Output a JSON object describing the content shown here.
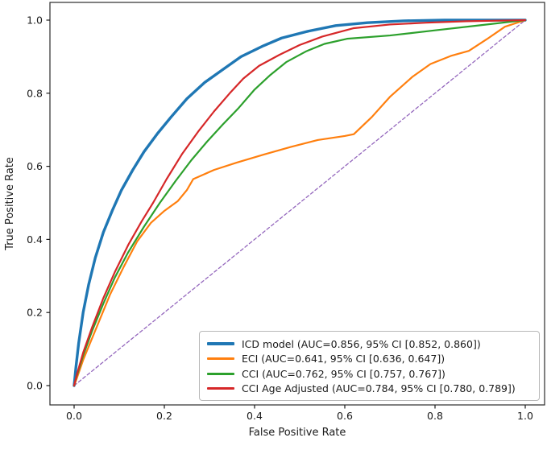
{
  "chart_data": {
    "type": "line",
    "title": "",
    "xlabel": "False Positive Rate",
    "ylabel": "True Positive Rate",
    "xlim": [
      0.0,
      1.0
    ],
    "ylim": [
      0.0,
      1.0
    ],
    "x_ticks": [
      "0.0",
      "0.2",
      "0.4",
      "0.6",
      "0.8",
      "1.0"
    ],
    "y_ticks": [
      "0.0",
      "0.2",
      "0.4",
      "0.6",
      "0.8",
      "1.0"
    ],
    "grid": false,
    "legend_position": "lower right",
    "series": [
      {
        "name": "ICD model (AUC=0.856, 95% CI [0.852, 0.860])",
        "short_name": "ICD model",
        "auc": 0.856,
        "ci_low": 0.852,
        "ci_high": 0.86,
        "color": "#1f77b4",
        "line_width": 3.4,
        "dash": "",
        "points": [
          [
            0,
            0
          ],
          [
            0.004,
            0.05
          ],
          [
            0.01,
            0.115
          ],
          [
            0.02,
            0.2
          ],
          [
            0.032,
            0.275
          ],
          [
            0.047,
            0.35
          ],
          [
            0.065,
            0.42
          ],
          [
            0.085,
            0.48
          ],
          [
            0.105,
            0.535
          ],
          [
            0.13,
            0.59
          ],
          [
            0.155,
            0.64
          ],
          [
            0.185,
            0.69
          ],
          [
            0.215,
            0.735
          ],
          [
            0.25,
            0.785
          ],
          [
            0.29,
            0.83
          ],
          [
            0.33,
            0.865
          ],
          [
            0.37,
            0.9
          ],
          [
            0.42,
            0.93
          ],
          [
            0.46,
            0.951
          ],
          [
            0.52,
            0.97
          ],
          [
            0.58,
            0.985
          ],
          [
            0.65,
            0.993
          ],
          [
            0.73,
            0.998
          ],
          [
            0.82,
            1.0
          ],
          [
            1,
            1
          ]
        ]
      },
      {
        "name": "ECI (AUC=0.641, 95% CI [0.636, 0.647])",
        "short_name": "ECI",
        "auc": 0.641,
        "ci_low": 0.636,
        "ci_high": 0.647,
        "color": "#ff7f0e",
        "line_width": 2.2,
        "dash": "",
        "points": [
          [
            0,
            0
          ],
          [
            0.006,
            0.02
          ],
          [
            0.02,
            0.07
          ],
          [
            0.05,
            0.16
          ],
          [
            0.08,
            0.25
          ],
          [
            0.11,
            0.325
          ],
          [
            0.14,
            0.395
          ],
          [
            0.17,
            0.445
          ],
          [
            0.2,
            0.478
          ],
          [
            0.23,
            0.505
          ],
          [
            0.25,
            0.535
          ],
          [
            0.264,
            0.565
          ],
          [
            0.31,
            0.59
          ],
          [
            0.36,
            0.61
          ],
          [
            0.42,
            0.632
          ],
          [
            0.48,
            0.653
          ],
          [
            0.54,
            0.672
          ],
          [
            0.6,
            0.683
          ],
          [
            0.62,
            0.688
          ],
          [
            0.66,
            0.735
          ],
          [
            0.7,
            0.79
          ],
          [
            0.75,
            0.845
          ],
          [
            0.79,
            0.88
          ],
          [
            0.835,
            0.902
          ],
          [
            0.875,
            0.916
          ],
          [
            0.915,
            0.948
          ],
          [
            0.955,
            0.982
          ],
          [
            1,
            1
          ]
        ]
      },
      {
        "name": "CCI (AUC=0.762, 95% CI [0.757, 0.767])",
        "short_name": "CCI",
        "auc": 0.762,
        "ci_low": 0.757,
        "ci_high": 0.767,
        "color": "#2ca02c",
        "line_width": 2.2,
        "dash": "",
        "points": [
          [
            0,
            0
          ],
          [
            0.006,
            0.027
          ],
          [
            0.02,
            0.082
          ],
          [
            0.04,
            0.15
          ],
          [
            0.065,
            0.225
          ],
          [
            0.09,
            0.295
          ],
          [
            0.12,
            0.365
          ],
          [
            0.155,
            0.435
          ],
          [
            0.19,
            0.5
          ],
          [
            0.225,
            0.56
          ],
          [
            0.26,
            0.617
          ],
          [
            0.295,
            0.668
          ],
          [
            0.33,
            0.715
          ],
          [
            0.365,
            0.76
          ],
          [
            0.4,
            0.81
          ],
          [
            0.435,
            0.85
          ],
          [
            0.47,
            0.885
          ],
          [
            0.515,
            0.915
          ],
          [
            0.555,
            0.935
          ],
          [
            0.605,
            0.949
          ],
          [
            0.7,
            0.958
          ],
          [
            0.8,
            0.972
          ],
          [
            0.9,
            0.986
          ],
          [
            1,
            1
          ]
        ]
      },
      {
        "name": "CCI Age Adjusted (AUC=0.784, 95% CI [0.780, 0.789])",
        "short_name": "CCI Age Adjusted",
        "auc": 0.784,
        "ci_low": 0.78,
        "ci_high": 0.789,
        "color": "#d62728",
        "line_width": 2.2,
        "dash": "",
        "points": [
          [
            0,
            0
          ],
          [
            0.006,
            0.03
          ],
          [
            0.02,
            0.09
          ],
          [
            0.04,
            0.16
          ],
          [
            0.065,
            0.24
          ],
          [
            0.09,
            0.31
          ],
          [
            0.12,
            0.385
          ],
          [
            0.15,
            0.45
          ],
          [
            0.175,
            0.5
          ],
          [
            0.205,
            0.565
          ],
          [
            0.24,
            0.635
          ],
          [
            0.275,
            0.695
          ],
          [
            0.31,
            0.75
          ],
          [
            0.345,
            0.8
          ],
          [
            0.375,
            0.84
          ],
          [
            0.41,
            0.875
          ],
          [
            0.455,
            0.905
          ],
          [
            0.5,
            0.932
          ],
          [
            0.55,
            0.955
          ],
          [
            0.62,
            0.978
          ],
          [
            0.7,
            0.988
          ],
          [
            0.78,
            0.993
          ],
          [
            0.87,
            0.997
          ],
          [
            1,
            1
          ]
        ]
      }
    ],
    "reference_line": {
      "name": "chance diagonal",
      "color": "#9467bd",
      "line_width": 1.3,
      "dash": "4 3",
      "points": [
        [
          0,
          0
        ],
        [
          1,
          1
        ]
      ]
    },
    "colors": {
      "axes_frame": "#2b2b2b",
      "tick": "#1a1a1a",
      "background": "#ffffff",
      "legend_border": "#b8b8b8"
    }
  }
}
